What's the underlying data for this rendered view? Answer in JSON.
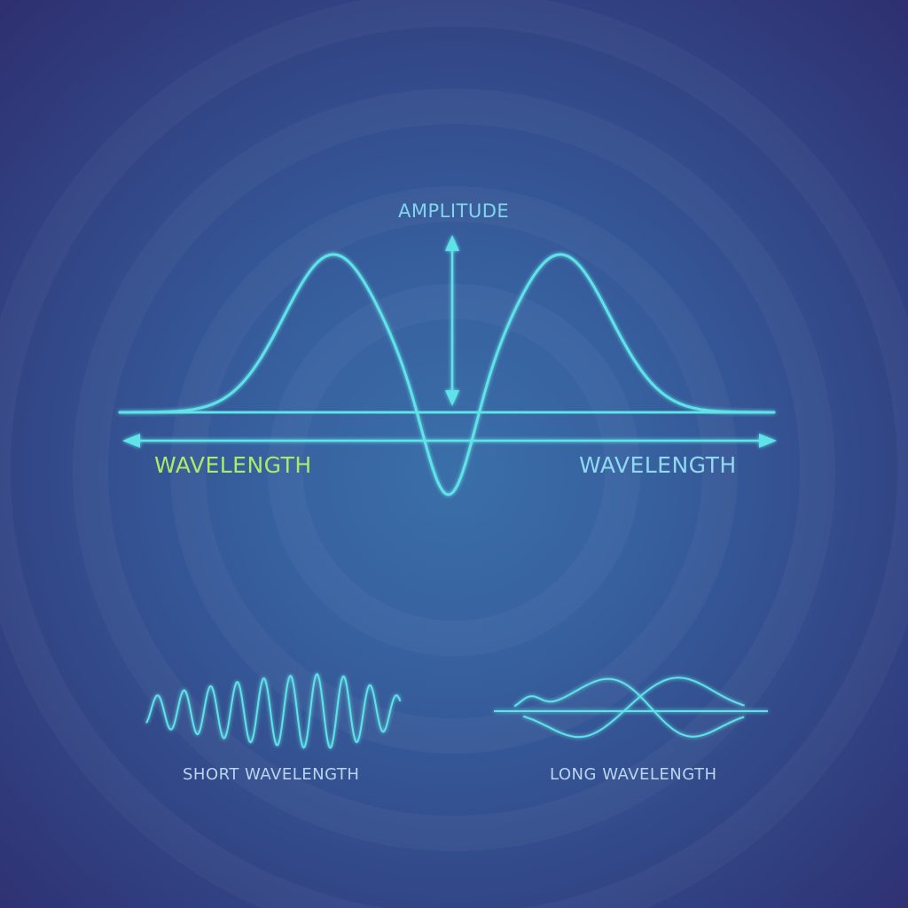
{
  "labels": {
    "amplitude": "AMPLITUDE",
    "wavelength_left": "WAVELENGTH",
    "wavelength_right": "WAVELENGTH",
    "short_wavelength": "SHORT WAVELENGTH",
    "long_wavelength": "LONG WAVELENGTH"
  },
  "colors": {
    "wave": "#5fe3e8",
    "wave_glow": "#4fd8e6",
    "wavelength_left_text": "#a9ec6a",
    "wavelength_right_text": "#8fd9f2",
    "caption_text": "#b9d4ef",
    "background_center": "#3a6fa8",
    "background_edge": "#2e2f70"
  }
}
